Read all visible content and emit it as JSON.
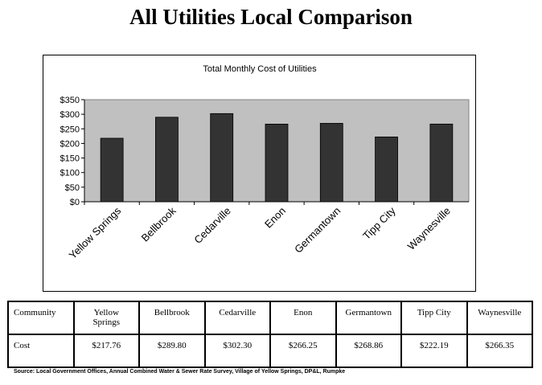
{
  "page_title": "All Utilities Local Comparison",
  "chart_data": {
    "type": "bar",
    "title": "Total Monthly Cost of Utilities",
    "categories": [
      "Yellow Springs",
      "Bellbrook",
      "Cedarville",
      "Enon",
      "Germantown",
      "Tipp City",
      "Waynesville"
    ],
    "values": [
      217.76,
      289.8,
      302.3,
      266.25,
      268.86,
      222.19,
      266.35
    ],
    "ylim": [
      0,
      350
    ],
    "yticks": [
      0,
      50,
      100,
      150,
      200,
      250,
      300,
      350
    ],
    "ytick_labels": [
      "$0",
      "$50",
      "$100",
      "$150",
      "$200",
      "$250",
      "$300",
      "$350"
    ],
    "xlabel": "",
    "ylabel": "",
    "grid": false,
    "bar_color": "#333333",
    "plot_background": "#c0c0c0"
  },
  "table": {
    "header_label": "Community",
    "row_label": "Cost",
    "columns": [
      "Yellow Springs",
      "Bellbrook",
      "Cedarville",
      "Enon",
      "Germantown",
      "Tipp City",
      "Waynesville"
    ],
    "costs": [
      "$217.76",
      "$289.80",
      "$302.30",
      "$266.25",
      "$268.86",
      "$222.19",
      "$266.35"
    ]
  },
  "source_note": "Source: Local Government Offices, Annual Combined Water & Sewer Rate Survey, Village of Yellow Springs, DP&L, Rumpke"
}
